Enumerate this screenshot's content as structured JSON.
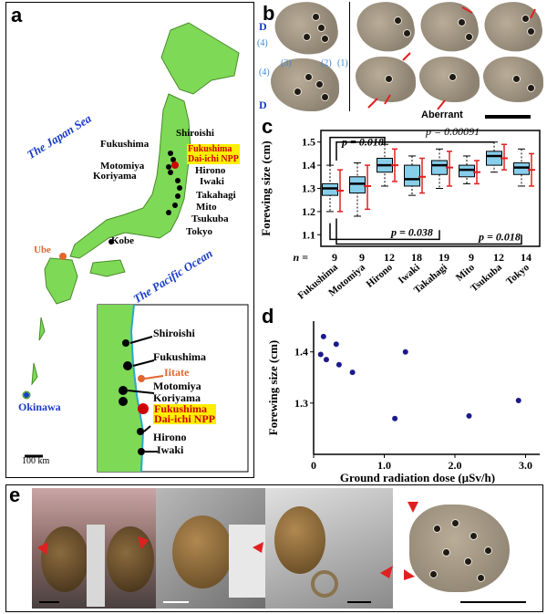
{
  "panels": {
    "a": "a",
    "b": "b",
    "c": "c",
    "d": "d",
    "e": "e"
  },
  "map": {
    "japan_sea": "The Japan Sea",
    "pacific": "The Pacific Ocean",
    "places": {
      "shiroishi": "Shiroishi",
      "fukushima": "Fukushima",
      "motomiya": "Motomiya",
      "koriyama": "Koriyama",
      "hirono": "Hirono",
      "iwaki": "Iwaki",
      "takahagi": "Takahagi",
      "mito": "Mito",
      "tsukuba": "Tsukuba",
      "tokyo": "Tokyo",
      "kobe": "Kobe",
      "ube": "Ube",
      "okinawa": "Okinawa"
    },
    "npp_line1": "Fukushima",
    "npp_line2": "Dai-ichi NPP",
    "scale": "100 km",
    "inset": {
      "shiroishi": "Shiroishi",
      "fukushima": "Fukushima",
      "iitate": "Iitate",
      "motomiya": "Motomiya",
      "koriyama": "Koriyama",
      "npp_line1": "Fukushima",
      "npp_line2": "Dai-ichi NPP",
      "hirono": "Hirono",
      "iwaki": "Iwaki"
    },
    "colors": {
      "land": "#7ed957",
      "sea_label": "#1a3cc8",
      "npp": "#d10000",
      "highlight": "#ffee00",
      "orange": "#e0662e"
    }
  },
  "wings": {
    "d_label": "D",
    "part_labels": [
      "(4)",
      "(2)",
      "(1)",
      "(4)",
      "(3)"
    ],
    "aberrant": "Aberrant"
  },
  "chart_data": [
    {
      "type": "box",
      "ylabel": "Forewing size (cm)",
      "categories": [
        "Fukushima",
        "Motomiya",
        "Hirono",
        "Iwaki",
        "Takahagi",
        "Mito",
        "Tsukuba",
        "Tokyo"
      ],
      "n_label": "n =",
      "n": [
        "9",
        "9",
        "12",
        "18",
        "19",
        "9",
        "12",
        "14"
      ],
      "ylim": [
        1.05,
        1.55
      ],
      "yticks": [
        "1.1",
        "1.2",
        "1.3",
        "1.4",
        "1.5"
      ],
      "ytick_values": [
        1.1,
        1.2,
        1.3,
        1.4,
        1.5
      ],
      "boxes": [
        {
          "q1": 1.27,
          "median": 1.3,
          "q3": 1.32,
          "wlo": 1.2,
          "whi": 1.4
        },
        {
          "q1": 1.28,
          "median": 1.32,
          "q3": 1.35,
          "wlo": 1.18,
          "whi": 1.41
        },
        {
          "q1": 1.37,
          "median": 1.4,
          "q3": 1.43,
          "wlo": 1.31,
          "whi": 1.49
        },
        {
          "q1": 1.31,
          "median": 1.34,
          "q3": 1.4,
          "wlo": 1.27,
          "whi": 1.44
        },
        {
          "q1": 1.36,
          "median": 1.4,
          "q3": 1.42,
          "wlo": 1.3,
          "whi": 1.47
        },
        {
          "q1": 1.35,
          "median": 1.38,
          "q3": 1.4,
          "wlo": 1.32,
          "whi": 1.44
        },
        {
          "q1": 1.4,
          "median": 1.44,
          "q3": 1.46,
          "wlo": 1.37,
          "whi": 1.5
        },
        {
          "q1": 1.36,
          "median": 1.39,
          "q3": 1.41,
          "wlo": 1.31,
          "whi": 1.47
        }
      ],
      "means": [
        1.29,
        1.31,
        1.4,
        1.35,
        1.39,
        1.37,
        1.43,
        1.38
      ],
      "sd_lo": [
        1.2,
        1.21,
        1.33,
        1.28,
        1.31,
        1.32,
        1.38,
        1.31
      ],
      "sd_hi": [
        1.38,
        1.4,
        1.47,
        1.43,
        1.46,
        1.42,
        1.49,
        1.45
      ],
      "annotations": [
        {
          "text": "p = 0.018",
          "position": "top-left"
        },
        {
          "text": "p = 0.00091",
          "position": "top-right"
        },
        {
          "text": "p = 0.038",
          "position": "bottom-middle"
        },
        {
          "text": "p = 0.018",
          "position": "bottom-right"
        }
      ],
      "colors": {
        "box": "#87ceeb",
        "sd": "#e02020"
      }
    },
    {
      "type": "scatter",
      "xlabel": "Ground radiation dose (µSv/h)",
      "ylabel": "Forewing size (cm)",
      "xlim": [
        0,
        3.2
      ],
      "ylim": [
        1.2,
        1.46
      ],
      "xticks": [
        "0",
        "1.0",
        "2.0",
        "3.0"
      ],
      "xtick_values": [
        0,
        1,
        2,
        3
      ],
      "yticks": [
        "1.3",
        "1.4"
      ],
      "ytick_values": [
        1.3,
        1.4
      ],
      "x": [
        0.1,
        0.14,
        0.18,
        0.32,
        0.36,
        0.55,
        1.15,
        1.3,
        2.2,
        2.9
      ],
      "y": [
        1.395,
        1.43,
        1.385,
        1.415,
        1.375,
        1.36,
        1.27,
        1.4,
        1.275,
        1.305
      ],
      "color": "#1a1a8c"
    }
  ]
}
